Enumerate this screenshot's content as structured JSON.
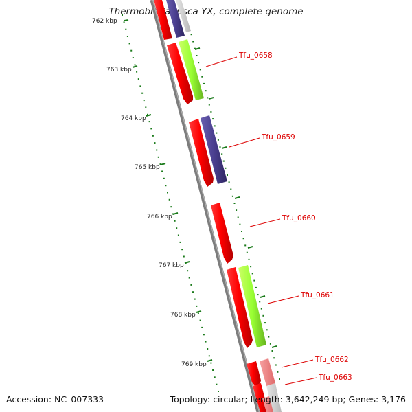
{
  "map": {
    "title": "Thermobifida fusca YX, complete genome",
    "accession": "Accession: NC_007333",
    "summary": "Topology: circular; Length: 3,642,249 bp; Genes: 3,176"
  },
  "ruler": {
    "unit": "kbp",
    "ticks": [
      {
        "label": "762 kbp"
      },
      {
        "label": "763 kbp"
      },
      {
        "label": "764 kbp"
      },
      {
        "label": "765 kbp"
      },
      {
        "label": "766 kbp"
      },
      {
        "label": "767 kbp"
      },
      {
        "label": "768 kbp"
      },
      {
        "label": "769 kbp"
      }
    ]
  },
  "genes": [
    {
      "label": "Tfu_0658"
    },
    {
      "label": "Tfu_0659"
    },
    {
      "label": "Tfu_0660"
    },
    {
      "label": "Tfu_0661"
    },
    {
      "label": "Tfu_0662"
    },
    {
      "label": "Tfu_0663"
    }
  ],
  "colors": {
    "cds": "#ff0000",
    "cds_faded": "#f08080",
    "track_green": "#99ff33",
    "track_purple": "#4a3f8f",
    "backbone": "#808080",
    "ruler": "#1a7a1a",
    "label": "#dd0000"
  }
}
